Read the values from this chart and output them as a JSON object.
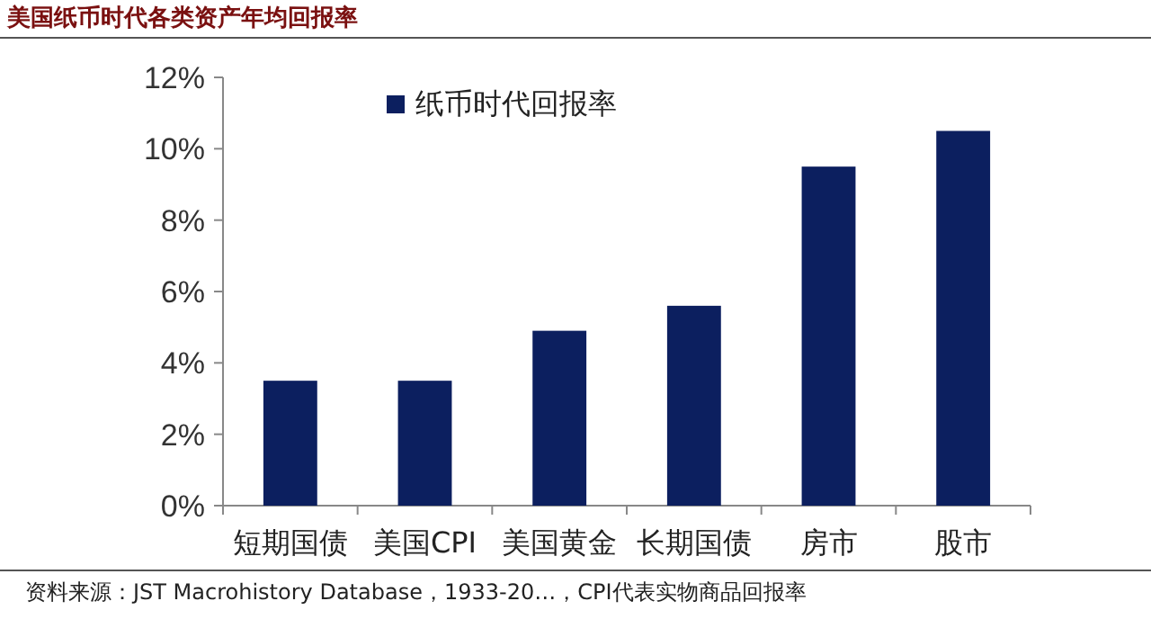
{
  "chart_data": {
    "type": "bar",
    "title": "美国纸币时代各类资产年均回报率",
    "categories": [
      "短期国债",
      "美国CPI",
      "美国黄金",
      "长期国债",
      "房市",
      "股市"
    ],
    "series": [
      {
        "name": "纸币时代回报率",
        "color": "#0c1f5f",
        "values": [
          3.5,
          3.5,
          4.9,
          5.6,
          9.5,
          10.5
        ]
      }
    ],
    "ylim": [
      0,
      12
    ],
    "yticks": [
      {
        "value": 0,
        "label": "0%"
      },
      {
        "value": 2,
        "label": "2%"
      },
      {
        "value": 4,
        "label": "4%"
      },
      {
        "value": 6,
        "label": "6%"
      },
      {
        "value": 8,
        "label": "8%"
      },
      {
        "value": 10,
        "label": "10%"
      },
      {
        "value": 12,
        "label": "12%"
      }
    ],
    "legend": "top",
    "grid": false,
    "annotations": [
      "资料来源：JST Macrohistory Database，1933-20…，CPI代表实物商品回报率"
    ]
  }
}
